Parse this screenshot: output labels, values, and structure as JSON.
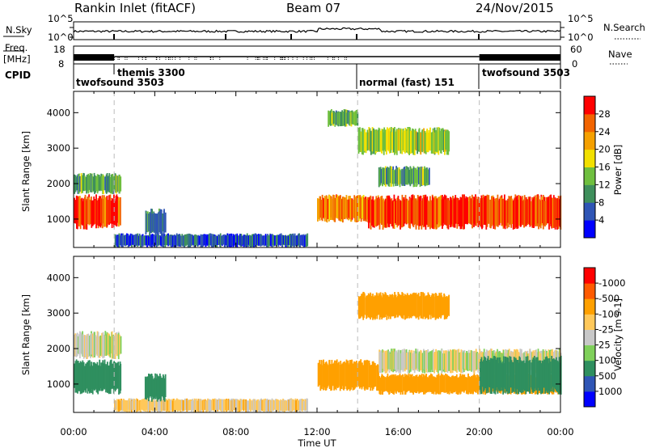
{
  "header": {
    "station": "Rankin Inlet (fitACF)",
    "beam": "Beam 07",
    "date": "24/Nov/2015"
  },
  "strip": {
    "nsky_label": "N.Sky",
    "nsky_ticks": [
      "10^5",
      "10^0"
    ],
    "nsearch_label": "N.Search",
    "nsearch_ticks": [
      "10^5",
      "10^0"
    ],
    "freq_label_1": "Freq.",
    "freq_label_2": "[MHz]",
    "freq_ticks": [
      "18",
      "8"
    ],
    "nave_label": "Nave",
    "nave_ticks": [
      "60",
      "0"
    ],
    "cpid_label": "CPID"
  },
  "cpid_segments": [
    {
      "name": "twofsound 3503",
      "start_hour": 0,
      "end_hour": 2
    },
    {
      "name": "themis 3300",
      "start_hour": 2,
      "end_hour": 14
    },
    {
      "name": "normal (fast) 151",
      "start_hour": 14,
      "end_hour": 20
    },
    {
      "name": "twofsound 3503",
      "start_hour": 20,
      "end_hour": 24
    }
  ],
  "axes": {
    "ylabel": "Slant Range [km]",
    "xlabel": "Time UT",
    "x_ticks": [
      "00:00",
      "04:00",
      "08:00",
      "12:00",
      "16:00",
      "20:00",
      "00:00"
    ],
    "y_ticks": [
      "1000",
      "2000",
      "3000",
      "4000"
    ]
  },
  "colors": {
    "power": [
      "#0000ff",
      "#2f55b5",
      "#3f8f5c",
      "#6fbf3f",
      "#f2e000",
      "#f5a000",
      "#f26400",
      "#ff0000"
    ],
    "velocity": [
      "#ff0000",
      "#ff5a00",
      "#ffa000",
      "#ffc85a",
      "#c8c8c8",
      "#7fd05a",
      "#2f8f5f",
      "#2f55b5",
      "#0000ff"
    ]
  },
  "chart_data": [
    {
      "type": "heatmap",
      "title": "Power",
      "xlabel": "Time UT",
      "ylabel": "Slant Range [km]",
      "xlim": [
        0,
        24
      ],
      "ylim": [
        200,
        4600
      ],
      "colorbar_label": "Power [dB]",
      "colorbar_ticks": [
        "4",
        "8",
        "12",
        "16",
        "20",
        "24",
        "28"
      ],
      "regions": [
        {
          "t0": 0.0,
          "t1": 2.3,
          "r0": 700,
          "r1": 1700,
          "value": 28
        },
        {
          "t0": 0.0,
          "t1": 2.3,
          "r0": 1700,
          "r1": 2300,
          "value": 12
        },
        {
          "t0": 2.0,
          "t1": 11.5,
          "r0": 200,
          "r1": 600,
          "value": 6
        },
        {
          "t0": 3.5,
          "t1": 4.5,
          "r0": 500,
          "r1": 1300,
          "value": 8
        },
        {
          "t0": 12.0,
          "t1": 14.5,
          "r0": 900,
          "r1": 1700,
          "value": 24
        },
        {
          "t0": 14.5,
          "t1": 24.0,
          "r0": 700,
          "r1": 1700,
          "value": 28
        },
        {
          "t0": 15.0,
          "t1": 17.5,
          "r0": 1900,
          "r1": 2500,
          "value": 12
        },
        {
          "t0": 12.5,
          "t1": 14.0,
          "r0": 3600,
          "r1": 4100,
          "value": 12
        },
        {
          "t0": 14.0,
          "t1": 18.5,
          "r0": 2800,
          "r1": 3600,
          "value": 16
        }
      ]
    },
    {
      "type": "heatmap",
      "title": "Velocity",
      "xlabel": "Time UT",
      "ylabel": "Slant Range [km]",
      "xlim": [
        0,
        24
      ],
      "ylim": [
        200,
        4600
      ],
      "colorbar_label": "Velocity [m s-1]",
      "colorbar_ticks": [
        "-1000",
        "-500",
        "-100",
        "-25",
        "25",
        "100",
        "500",
        "1000"
      ],
      "regions": [
        {
          "t0": 0.0,
          "t1": 2.3,
          "r0": 700,
          "r1": 1700,
          "value": 300
        },
        {
          "t0": 0.0,
          "t1": 2.3,
          "r0": 1700,
          "r1": 2500,
          "value": 0
        },
        {
          "t0": 2.0,
          "t1": 11.5,
          "r0": 200,
          "r1": 600,
          "value": -50
        },
        {
          "t0": 3.5,
          "t1": 4.5,
          "r0": 500,
          "r1": 1300,
          "value": 300
        },
        {
          "t0": 12.0,
          "t1": 15.0,
          "r0": 800,
          "r1": 1700,
          "value": -200
        },
        {
          "t0": 15.0,
          "t1": 24.0,
          "r0": 1300,
          "r1": 2000,
          "value": 0
        },
        {
          "t0": 15.0,
          "t1": 24.0,
          "r0": 700,
          "r1": 1300,
          "value": -200
        },
        {
          "t0": 20.0,
          "t1": 24.0,
          "r0": 700,
          "r1": 1800,
          "value": 200
        },
        {
          "t0": 14.0,
          "t1": 18.5,
          "r0": 2800,
          "r1": 3600,
          "value": -200
        }
      ]
    }
  ]
}
